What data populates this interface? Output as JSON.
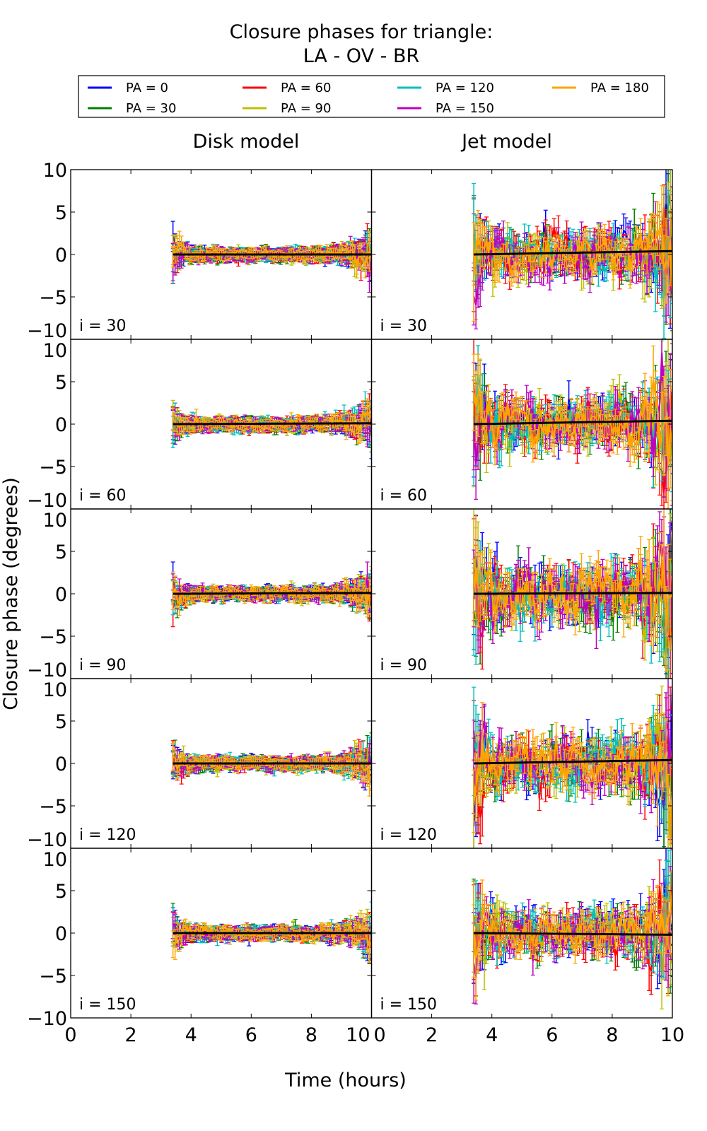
{
  "chart_data": {
    "type": "line",
    "title_line1": "Closure phases for triangle:",
    "title_line2": "LA - OV - BR",
    "xlabel": "Time (hours)",
    "ylabel": "Closure phase (degrees)",
    "xlim": [
      0,
      10
    ],
    "ylim": [
      -10,
      10
    ],
    "xticks": [
      "0",
      "2",
      "4",
      "6",
      "8",
      "10"
    ],
    "yticks": [
      "10",
      "5",
      "0",
      "−5",
      "−10"
    ],
    "columns": [
      "Disk model",
      "Jet model"
    ],
    "legend": {
      "placement": "top",
      "entries": [
        {
          "label": "PA = 0",
          "color": "#0000ff"
        },
        {
          "label": "PA = 30",
          "color": "#008000"
        },
        {
          "label": "PA = 60",
          "color": "#ff0000"
        },
        {
          "label": "PA = 90",
          "color": "#bfbf00"
        },
        {
          "label": "PA = 120",
          "color": "#00bfbf"
        },
        {
          "label": "PA = 150",
          "color": "#bf00bf"
        },
        {
          "label": "PA = 180",
          "color": "#ffa500"
        }
      ]
    },
    "time_range": [
      3.4,
      10.0
    ],
    "points_per_series": 95,
    "panels": [
      {
        "label": "i = 30",
        "model": "Disk",
        "scatter_deg": 0.4,
        "error_deg": 0.6,
        "mean_end": 0.0
      },
      {
        "label": "i = 30",
        "model": "Jet",
        "scatter_deg": 1.6,
        "error_deg": 1.6,
        "mean_end": 0.4
      },
      {
        "label": "i = 60",
        "model": "Disk",
        "scatter_deg": 0.4,
        "error_deg": 0.6,
        "mean_end": 0.1
      },
      {
        "label": "i = 60",
        "model": "Jet",
        "scatter_deg": 1.8,
        "error_deg": 1.8,
        "mean_end": 0.4
      },
      {
        "label": "i = 90",
        "model": "Disk",
        "scatter_deg": 0.4,
        "error_deg": 0.6,
        "mean_end": 0.1
      },
      {
        "label": "i = 90",
        "model": "Jet",
        "scatter_deg": 2.0,
        "error_deg": 2.0,
        "mean_end": 0.1
      },
      {
        "label": "i = 120",
        "model": "Disk",
        "scatter_deg": 0.4,
        "error_deg": 0.6,
        "mean_end": 0.0
      },
      {
        "label": "i = 120",
        "model": "Jet",
        "scatter_deg": 1.8,
        "error_deg": 1.8,
        "mean_end": 0.4
      },
      {
        "label": "i = 150",
        "model": "Disk",
        "scatter_deg": 0.4,
        "error_deg": 0.6,
        "mean_end": 0.0
      },
      {
        "label": "i = 150",
        "model": "Jet",
        "scatter_deg": 1.6,
        "error_deg": 1.6,
        "mean_end": -0.2
      }
    ]
  }
}
